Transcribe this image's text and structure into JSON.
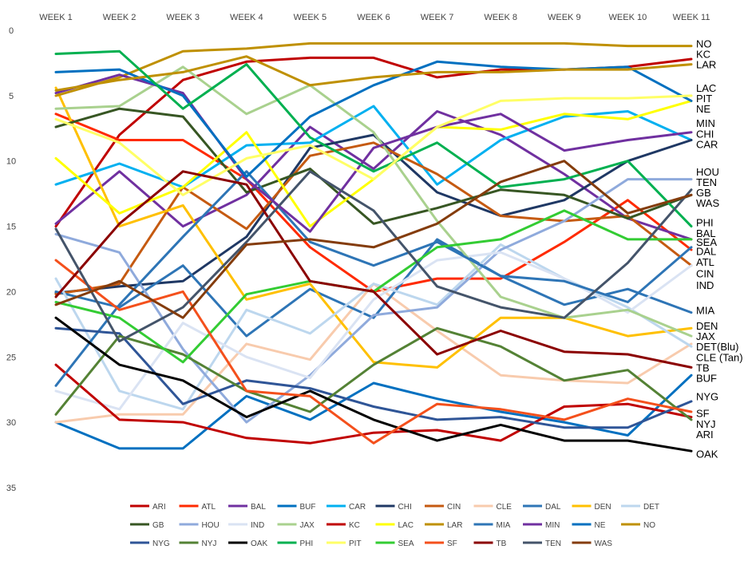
{
  "chart_data": {
    "type": "line",
    "x": [
      "WEEK 1",
      "WEEK 2",
      "WEEK 3",
      "WEEK 4",
      "WEEK 5",
      "WEEK 6",
      "WEEK 7",
      "WEEK 8",
      "WEEK 9",
      "WEEK 10",
      "WEEK 11"
    ],
    "ylim": [
      0,
      35
    ],
    "y_inverted": true,
    "yticks": [
      0,
      5,
      10,
      15,
      20,
      25,
      30,
      35
    ],
    "grid": false,
    "legend_position": "bottom",
    "series": [
      {
        "name": "ARI",
        "color": "#c00000",
        "values": [
          15,
          8,
          3.8,
          2.4,
          2.1,
          2.1,
          3.6,
          3,
          3,
          2.8,
          2.2
        ],
        "end_label": "ARI",
        "end_label_rank": 30
      },
      {
        "name": "ATL",
        "color": "#ff2a00",
        "values": [
          6.4,
          8.4,
          8.4,
          11.4,
          16.6,
          20,
          19,
          19,
          16.2,
          13,
          16.8
        ],
        "end_label": "ATL",
        "end_label_rank": 17
      },
      {
        "name": "BAL",
        "color": "#7030a0",
        "values": [
          14.8,
          10.8,
          15,
          12.6,
          7.4,
          10.6,
          6.2,
          8,
          11,
          14.4,
          16
        ],
        "end_label": "BAL",
        "end_label_rank": 15
      },
      {
        "name": "BUF",
        "color": "#0070c0",
        "values": [
          30,
          32,
          32,
          28,
          29.8,
          27,
          28.2,
          29.2,
          30,
          31,
          26.4
        ],
        "end_label": "BUF",
        "end_label_rank": 26
      },
      {
        "name": "CAR",
        "color": "#00b0f0",
        "values": [
          11.8,
          10.2,
          12,
          8.8,
          8.6,
          5.8,
          11.8,
          8.4,
          6.6,
          6.2,
          8.4
        ],
        "end_label": "CAR",
        "end_label_rank": 8
      },
      {
        "name": "CHI",
        "color": "#1f3864",
        "values": [
          20.1,
          19.6,
          19.2,
          15.8,
          9,
          8,
          12.4,
          14.2,
          13,
          10,
          8.4
        ],
        "end_label": "CHI",
        "end_label_rank": 7
      },
      {
        "name": "CIN",
        "color": "#c55a11",
        "values": [
          20.2,
          19.4,
          12,
          15.2,
          9.6,
          8.6,
          11,
          14.2,
          14.6,
          14.2,
          18
        ],
        "end_label": "CIN",
        "end_label_rank": 18
      },
      {
        "name": "CLE",
        "color": "#f8cbad",
        "values": [
          30,
          29.4,
          29.4,
          24,
          25.2,
          19.4,
          23,
          26.4,
          26.8,
          27,
          24
        ],
        "end_label": "CLE (Tan)",
        "end_label_rank": 23
      },
      {
        "name": "DAL",
        "color": "#2e75b6",
        "values": [
          20,
          21.2,
          18,
          23.4,
          19.8,
          22,
          16,
          18.8,
          21,
          19.8,
          21.6
        ],
        "end_label": "DAL",
        "end_label_rank": 16
      },
      {
        "name": "DEN",
        "color": "#ffc000",
        "values": [
          4.4,
          15,
          13.4,
          20.6,
          19.4,
          25.4,
          25.8,
          22,
          22,
          23.4,
          22.8
        ],
        "end_label": "DEN",
        "end_label_rank": 20
      },
      {
        "name": "DET",
        "color": "#bdd7ee",
        "values": [
          19,
          27.6,
          29,
          21.4,
          23.2,
          19.4,
          21,
          16.4,
          19,
          21.2,
          24.2
        ],
        "end_label": "DET(Blu)",
        "end_label_rank": 22
      },
      {
        "name": "GB",
        "color": "#375623",
        "values": [
          7.4,
          6,
          6.6,
          12.4,
          10.6,
          14.8,
          13.6,
          12.2,
          12.6,
          14.4,
          12.6
        ],
        "end_label": "GB",
        "end_label_rank": 11
      },
      {
        "name": "HOU",
        "color": "#8faadc",
        "values": [
          15.6,
          17,
          24.4,
          30,
          26.4,
          21.8,
          21.2,
          16.8,
          14.6,
          11.4,
          11.4
        ],
        "end_label": "HOU",
        "end_label_rank": 9
      },
      {
        "name": "IND",
        "color": "#dae3f3",
        "values": [
          27.6,
          29,
          22.4,
          25,
          26.6,
          20.6,
          17.6,
          17,
          19,
          21.6,
          18
        ],
        "end_label": "IND",
        "end_label_rank": 19
      },
      {
        "name": "JAX",
        "color": "#a9d18e",
        "values": [
          6,
          5.8,
          2.8,
          6.4,
          4.2,
          7.8,
          14.6,
          20.4,
          22,
          21.4,
          23.4
        ],
        "end_label": "JAX",
        "end_label_rank": 21
      },
      {
        "name": "KC",
        "color": "#c00000",
        "values": [
          25.6,
          29.8,
          30,
          31.2,
          31.6,
          30.8,
          30.6,
          31.4,
          28.8,
          28.6,
          29.6
        ],
        "end_label": "KC",
        "end_label_rank": 2
      },
      {
        "name": "LAC",
        "color": "#ffff00",
        "values": [
          9.8,
          14,
          12,
          7.8,
          15,
          11.4,
          7.4,
          7.6,
          6.4,
          6.8,
          5.4
        ],
        "end_label": "LAC",
        "end_label_rank": 4
      },
      {
        "name": "LAR",
        "color": "#bf9000",
        "values": [
          5,
          3.6,
          1.6,
          1.4,
          1,
          1,
          1,
          1,
          1,
          1.2,
          1.2
        ],
        "end_label": "LAR",
        "end_label_rank": 3
      },
      {
        "name": "MIA",
        "color": "#2e75b6",
        "values": [
          27.2,
          21,
          15.8,
          10.8,
          16.2,
          18,
          16.2,
          18.8,
          19.2,
          20.8,
          16.6
        ],
        "end_label": "MIA",
        "end_label_rank": 20
      },
      {
        "name": "MIN",
        "color": "#7030a0",
        "values": [
          4.8,
          3.4,
          4.8,
          11.4,
          15.4,
          9,
          7.4,
          6.4,
          9.2,
          8.4,
          7.8
        ],
        "end_label": "MIN",
        "end_label_rank": 6
      },
      {
        "name": "NE",
        "color": "#0070c0",
        "values": [
          3.2,
          3,
          5,
          11.2,
          6.6,
          4.2,
          2.4,
          2.8,
          3,
          2.8,
          5.4
        ],
        "end_label": "NE",
        "end_label_rank": 5
      },
      {
        "name": "NO",
        "color": "#bf9000",
        "values": [
          4.6,
          3.8,
          3.2,
          2,
          4.2,
          3.6,
          3.2,
          3.2,
          3,
          3,
          2.6
        ],
        "end_label": "NO",
        "end_label_rank": 1
      },
      {
        "name": "NYG",
        "color": "#2f5597",
        "values": [
          22.8,
          23.2,
          28.6,
          26.8,
          27.4,
          28.8,
          29.8,
          29.6,
          30.4,
          30.4,
          28.4
        ],
        "end_label": "NYG",
        "end_label_rank": 27
      },
      {
        "name": "NYJ",
        "color": "#548235",
        "values": [
          29.4,
          23.4,
          24.8,
          27.6,
          29.2,
          25.6,
          22.8,
          24.2,
          26.8,
          26,
          29.8
        ],
        "end_label": "NYJ",
        "end_label_rank": 29
      },
      {
        "name": "OAK",
        "color": "#000000",
        "values": [
          22,
          25.6,
          26.8,
          29.6,
          27.6,
          29.8,
          31.4,
          30.2,
          31.4,
          31.4,
          32.2
        ],
        "end_label": "OAK",
        "end_label_rank": 32
      },
      {
        "name": "PHI",
        "color": "#00b050",
        "values": [
          1.8,
          1.6,
          6,
          2.6,
          8.2,
          10.8,
          8.6,
          12,
          11.4,
          10,
          15
        ],
        "end_label": "PHI",
        "end_label_rank": 13
      },
      {
        "name": "PIT",
        "color": "#ffff66",
        "values": [
          6.8,
          8.6,
          12.6,
          9.8,
          8.8,
          11.4,
          7.4,
          5.4,
          5.2,
          5.2,
          5
        ],
        "end_label": "PIT",
        "end_label_rank": 5
      },
      {
        "name": "SEA",
        "color": "#33cc33",
        "values": [
          20.8,
          22,
          25.4,
          20.2,
          19.2,
          20,
          16.6,
          16,
          13.8,
          16,
          16
        ],
        "end_label": "SEA",
        "end_label_rank": 15
      },
      {
        "name": "SF",
        "color": "#f4501c",
        "values": [
          17.6,
          21.4,
          20,
          27.6,
          28,
          31.6,
          28.6,
          29,
          29.8,
          28.2,
          29.2
        ],
        "end_label": "SF",
        "end_label_rank": 28
      },
      {
        "name": "TB",
        "color": "#8b0000",
        "values": [
          20.4,
          14.8,
          10.8,
          11.8,
          19.2,
          20,
          24.8,
          23,
          24.6,
          24.8,
          25.8
        ],
        "end_label": "TB",
        "end_label_rank": 25
      },
      {
        "name": "TEN",
        "color": "#44546a",
        "values": [
          15.2,
          23.8,
          21.2,
          16.2,
          10.8,
          13.8,
          19.6,
          21.2,
          22,
          17.8,
          12.2
        ],
        "end_label": "TEN",
        "end_label_rank": 10
      },
      {
        "name": "WAS",
        "color": "#843c0c",
        "values": [
          21,
          19.2,
          22,
          16.4,
          16,
          16.6,
          14.8,
          11.6,
          10,
          14,
          12.6
        ],
        "end_label": "WAS",
        "end_label_rank": 12
      }
    ],
    "end_labels": [
      {
        "text": "NO",
        "y": 1
      },
      {
        "text": "KC",
        "y": 1.8
      },
      {
        "text": "LAR",
        "y": 2.6
      },
      {
        "text": "LAC",
        "y": 4.4
      },
      {
        "text": "PIT",
        "y": 5.2
      },
      {
        "text": "NE",
        "y": 6
      },
      {
        "text": "MIN",
        "y": 7.1
      },
      {
        "text": "CHI",
        "y": 7.9
      },
      {
        "text": "CAR",
        "y": 8.7
      },
      {
        "text": "HOU",
        "y": 10.8
      },
      {
        "text": "TEN",
        "y": 11.6
      },
      {
        "text": "GB",
        "y": 12.4
      },
      {
        "text": "WAS",
        "y": 13.2
      },
      {
        "text": "PHI",
        "y": 14.7
      },
      {
        "text": "BAL",
        "y": 15.5
      },
      {
        "text": "SEA",
        "y": 16.2
      },
      {
        "text": "DAL",
        "y": 16.9
      },
      {
        "text": "ATL",
        "y": 17.7
      },
      {
        "text": "CIN",
        "y": 18.6
      },
      {
        "text": "IND",
        "y": 19.5
      },
      {
        "text": "MIA",
        "y": 21.4
      },
      {
        "text": "DEN",
        "y": 22.6
      },
      {
        "text": "JAX",
        "y": 23.4
      },
      {
        "text": "DET(Blu)",
        "y": 24.2
      },
      {
        "text": "CLE (Tan)",
        "y": 25
      },
      {
        "text": "TB",
        "y": 25.8
      },
      {
        "text": "BUF",
        "y": 26.6
      },
      {
        "text": "NYG",
        "y": 28
      },
      {
        "text": "SF",
        "y": 29.3
      },
      {
        "text": "NYJ",
        "y": 30.1
      },
      {
        "text": "ARI",
        "y": 30.9
      },
      {
        "text": "OAK",
        "y": 32.4
      }
    ],
    "legend_rows": [
      [
        "ARI",
        "ATL",
        "BAL",
        "BUF",
        "CAR",
        "CHI",
        "CIN",
        "CLE",
        "DAL",
        "DEN",
        "DET"
      ],
      [
        "GB",
        "HOU",
        "IND",
        "JAX",
        "KC",
        "LAC",
        "LAR",
        "MIA",
        "MIN",
        "NE",
        "NO"
      ],
      [
        "NYG",
        "NYJ",
        "OAK",
        "PHI",
        "PIT",
        "SEA",
        "SF",
        "TB",
        "TEN",
        "WAS"
      ]
    ]
  }
}
